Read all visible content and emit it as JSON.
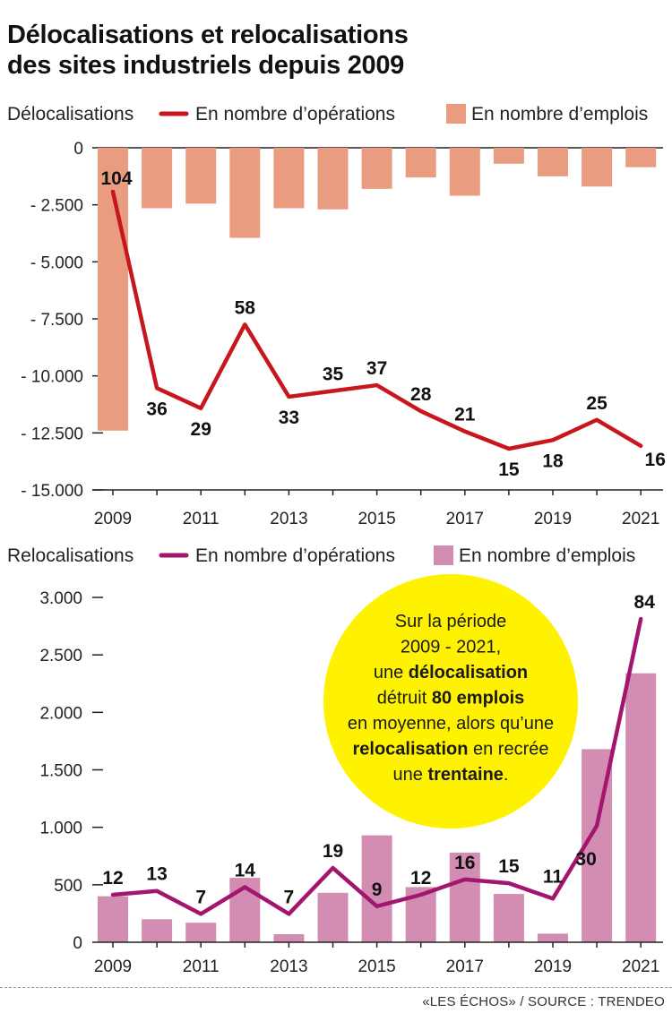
{
  "title_line1": "Délocalisations et relocalisations",
  "title_line2": "des sites industriels depuis 2009",
  "source": "«LES ÉCHOS» / SOURCE : TRENDEO",
  "colors": {
    "deloc_bar": "#e99c7f",
    "deloc_line": "#c8161d",
    "reloc_bar": "#d48db2",
    "reloc_line": "#a3166e",
    "callout_bg": "#fff200"
  },
  "callout": {
    "line1": "Sur la période",
    "line2": "2009 - 2021,",
    "line3_a": "une ",
    "line3_b": "délocalisation",
    "line4_a": "détruit ",
    "line4_b": "80 emplois",
    "line5": "en moyenne, alors qu’une",
    "line6_a": "relocalisation",
    "line6_b": " en recrée",
    "line7_a": "une ",
    "line7_b": "trentaine",
    "line7_c": "."
  },
  "chart_data": [
    {
      "type": "bar",
      "label": "Délocalisations",
      "categories": [
        2009,
        2010,
        2011,
        2012,
        2013,
        2014,
        2015,
        2016,
        2017,
        2018,
        2019,
        2020,
        2021
      ],
      "x_tick_labels": [
        "2009",
        "2011",
        "2013",
        "2015",
        "2017",
        "2019",
        "2021"
      ],
      "y_ticks": [
        0,
        -2500,
        -5000,
        -7500,
        -10000,
        -12500,
        -15000
      ],
      "y_tick_labels": [
        "0",
        "- 2.500",
        "- 5.000",
        "- 7.500",
        "- 10.000",
        "- 12.500",
        "- 15.000"
      ],
      "ylim": [
        -15000,
        0
      ],
      "legend": {
        "line": "En nombre d’opérations",
        "bar": "En nombre d’emplois"
      },
      "series": [
        {
          "name": "En nombre d’emplois",
          "type": "bar",
          "values": [
            -12400,
            -2650,
            -2450,
            -3950,
            -2650,
            -2700,
            -1800,
            -1300,
            -2100,
            -700,
            -1250,
            -1700,
            -850
          ]
        },
        {
          "name": "En nombre d’opérations",
          "type": "line",
          "values": [
            104,
            36,
            29,
            58,
            33,
            35,
            37,
            28,
            21,
            15,
            18,
            25,
            16
          ],
          "data_labels": [
            "104",
            "36",
            "29",
            "58",
            "33",
            "35",
            "37",
            "28",
            "21",
            "15",
            "18",
            "25",
            "16"
          ]
        }
      ]
    },
    {
      "type": "bar",
      "label": "Relocalisations",
      "categories": [
        2009,
        2010,
        2011,
        2012,
        2013,
        2014,
        2015,
        2016,
        2017,
        2018,
        2019,
        2020,
        2021
      ],
      "x_tick_labels": [
        "2009",
        "2011",
        "2013",
        "2015",
        "2017",
        "2019",
        "2021"
      ],
      "y_ticks": [
        0,
        500,
        1000,
        1500,
        2000,
        2500,
        3000
      ],
      "y_tick_labels": [
        "0",
        "500",
        "1.000",
        "1.500",
        "2.000",
        "2.500",
        "3.000"
      ],
      "ylim": [
        0,
        3000
      ],
      "legend": {
        "line": "En nombre d’opérations",
        "bar": "En nombre d’emplois"
      },
      "series": [
        {
          "name": "En nombre d’emplois",
          "type": "bar",
          "values": [
            400,
            200,
            170,
            560,
            70,
            430,
            930,
            480,
            780,
            420,
            75,
            1680,
            2340
          ]
        },
        {
          "name": "En nombre d’opérations",
          "type": "line",
          "values": [
            12,
            13,
            7,
            14,
            7,
            19,
            9,
            12,
            16,
            15,
            11,
            30,
            84
          ],
          "data_labels": [
            "12",
            "13",
            "7",
            "14",
            "7",
            "19",
            "9",
            "12",
            "16",
            "15",
            "11",
            "30",
            "84"
          ]
        }
      ]
    }
  ]
}
